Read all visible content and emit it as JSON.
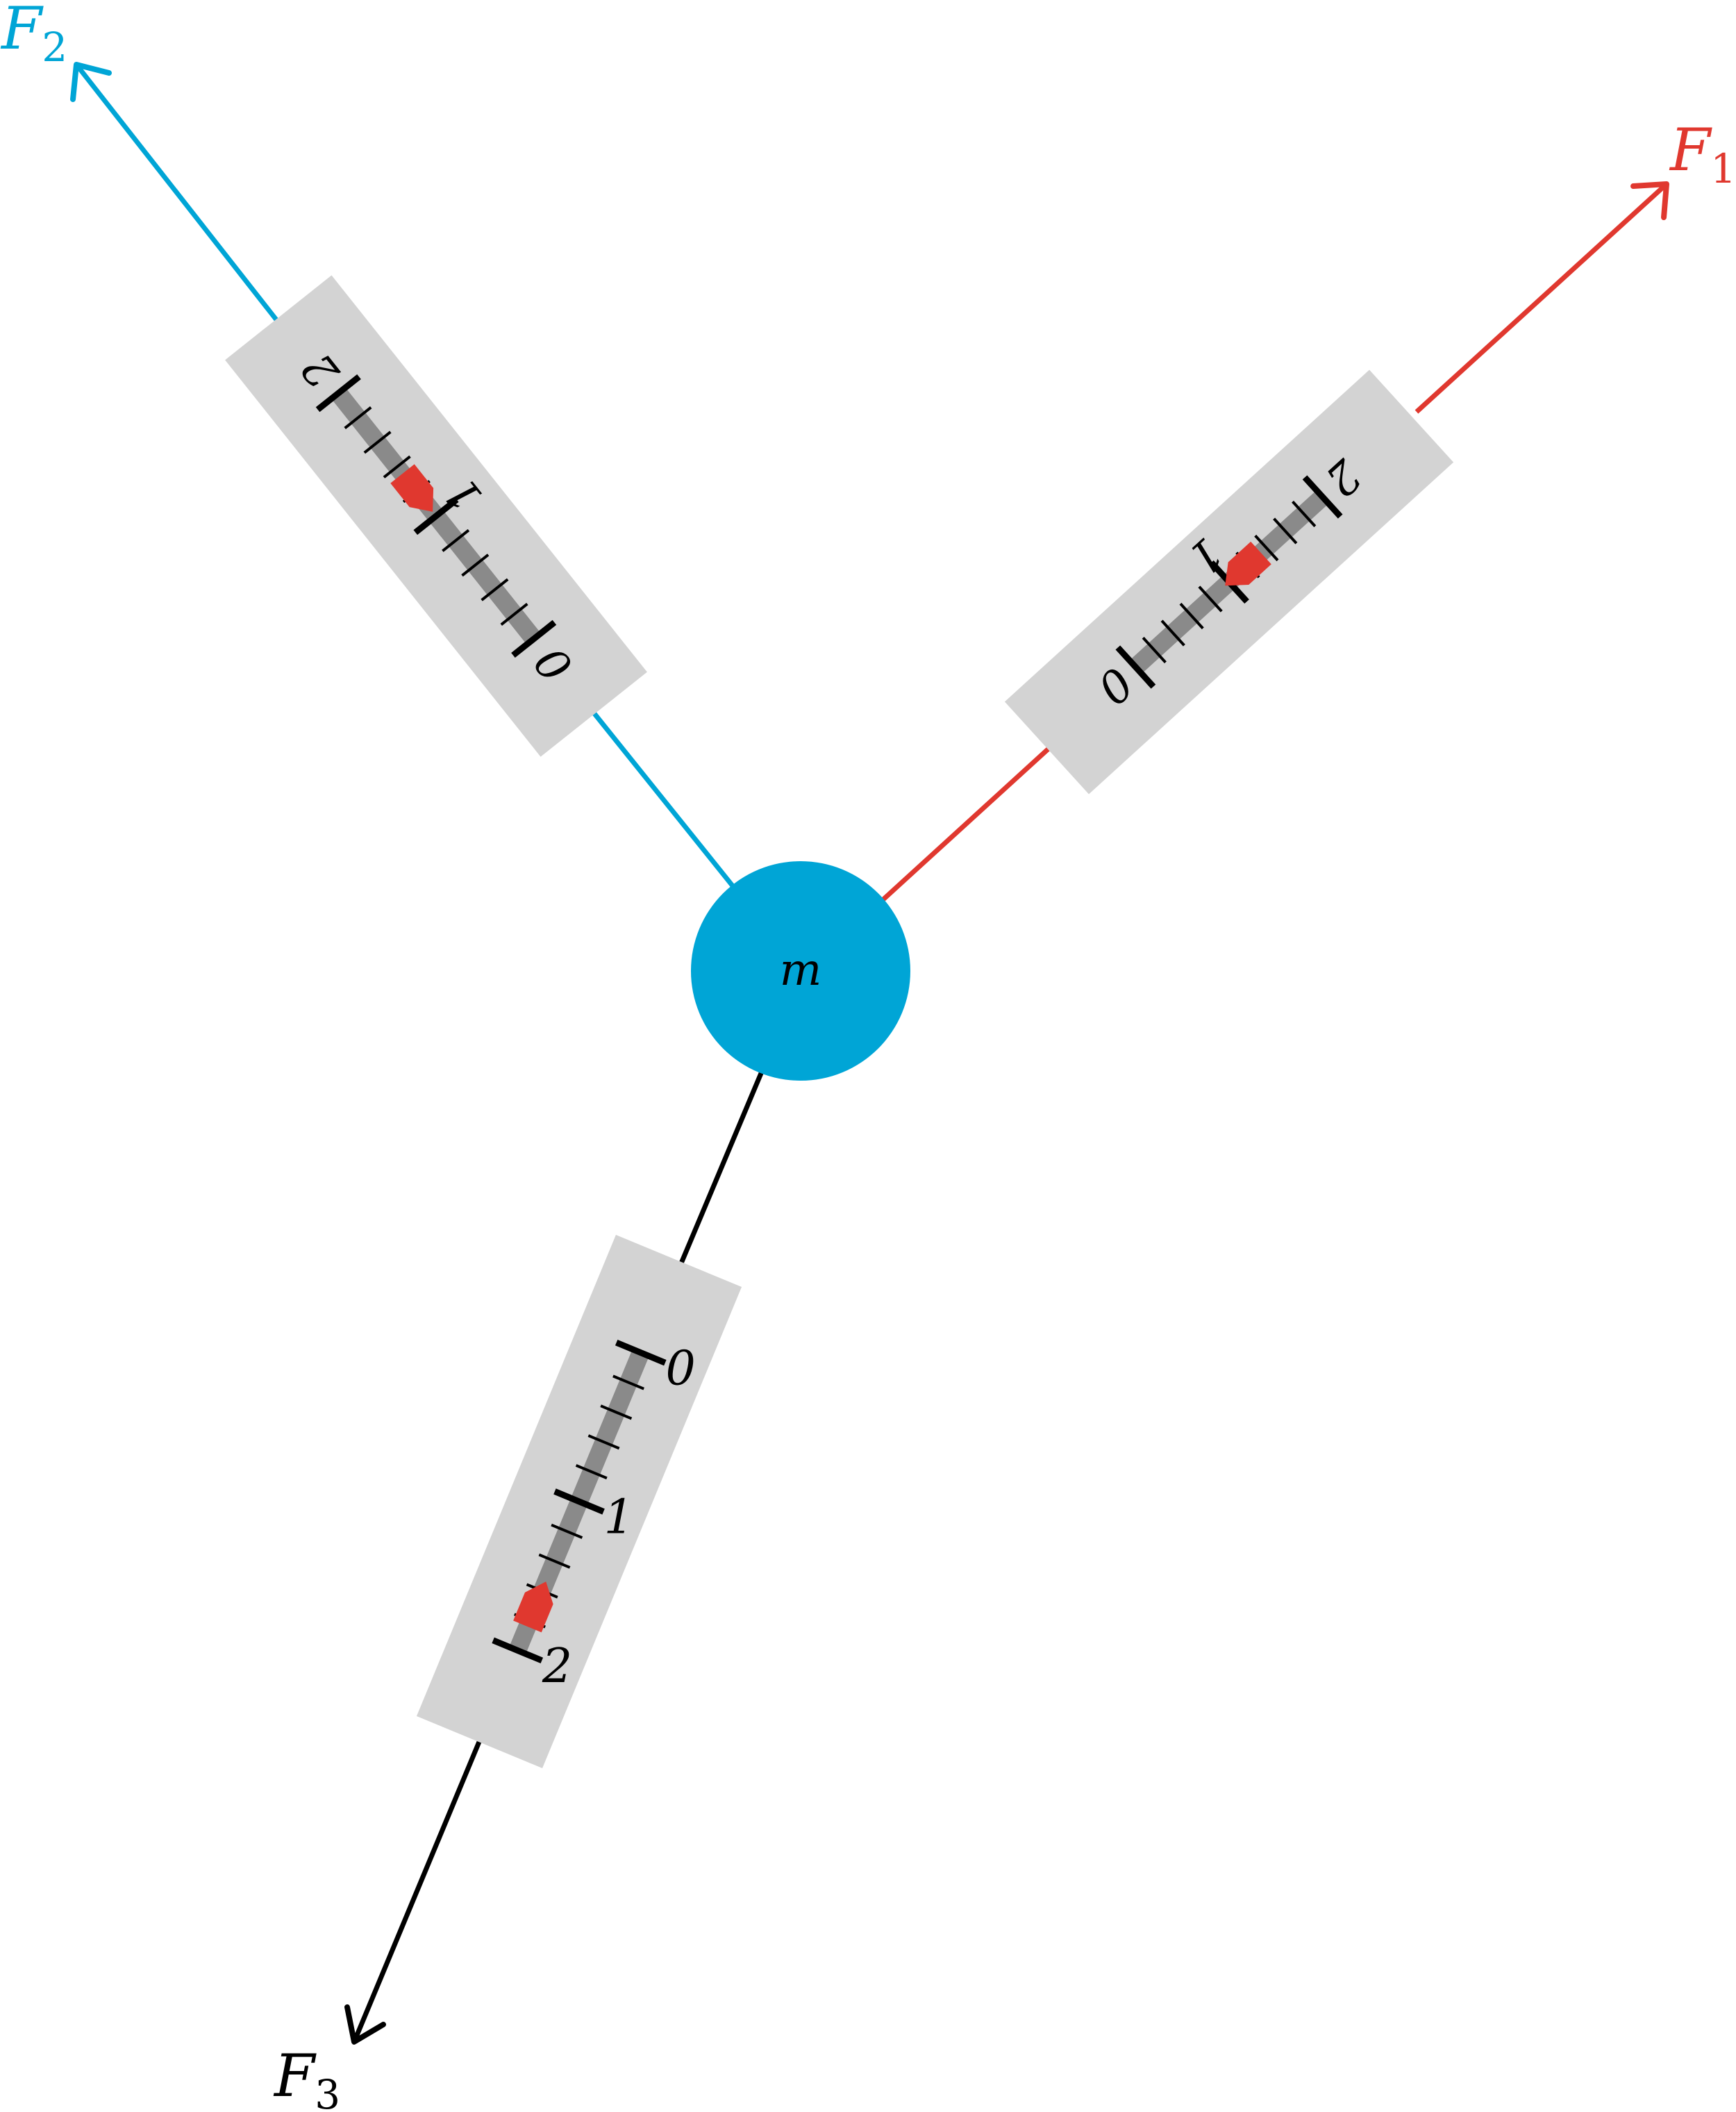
{
  "mass": {
    "label": "m",
    "color": "#00a5d6"
  },
  "forces": [
    {
      "id": "f1",
      "symbol": "F",
      "subscript": "1",
      "color": "#e0382f",
      "scale_labels": [
        "0",
        "1",
        "2"
      ],
      "reading": 1.1
    },
    {
      "id": "f2",
      "symbol": "F",
      "subscript": "2",
      "color": "#00a5d6",
      "scale_labels": [
        "0",
        "1",
        "2"
      ],
      "reading": 1.15
    },
    {
      "id": "f3",
      "symbol": "F",
      "subscript": "3",
      "color": "#000000",
      "scale_labels": [
        "0",
        "1",
        "2"
      ],
      "reading": 1.65
    }
  ],
  "style": {
    "meter_body": "#d3d3d3",
    "meter_track": "#8a8a8a",
    "pointer": "#e0382f",
    "tick": "#000000"
  }
}
